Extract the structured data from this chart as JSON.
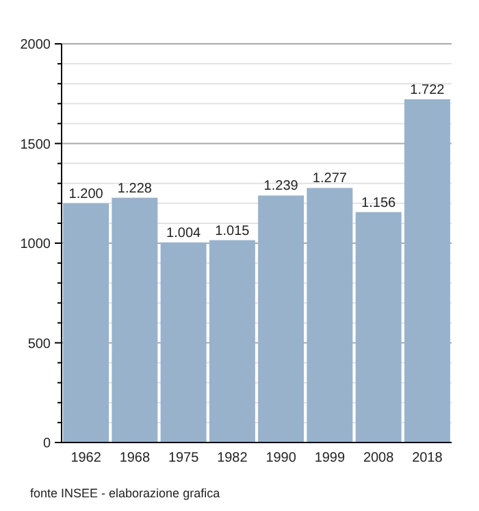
{
  "chart_data": {
    "type": "bar",
    "categories": [
      "1962",
      "1968",
      "1975",
      "1982",
      "1990",
      "1999",
      "2008",
      "2018"
    ],
    "values": [
      1200,
      1228,
      1004,
      1015,
      1239,
      1277,
      1156,
      1722
    ],
    "value_labels": [
      "1.200",
      "1.228",
      "1.004",
      "1.015",
      "1.239",
      "1.277",
      "1.156",
      "1.722"
    ],
    "color": "#98b2cc",
    "ylim": [
      0,
      2000
    ],
    "yticks": [
      0,
      {
        "value": 100,
        "label": null
      },
      {
        "value": 200,
        "label": null
      },
      {
        "value": 300,
        "label": null
      },
      {
        "value": 400,
        "label": null
      },
      500,
      {
        "value": 600,
        "label": null
      },
      {
        "value": 700,
        "label": null
      },
      {
        "value": 800,
        "label": null
      },
      {
        "value": 900,
        "label": null
      },
      1000,
      {
        "value": 1100,
        "label": null
      },
      {
        "value": 1200,
        "label": null
      },
      {
        "value": 1300,
        "label": null
      },
      {
        "value": 1400,
        "label": null
      },
      1500,
      {
        "value": 1600,
        "label": null
      },
      {
        "value": 1700,
        "label": null
      },
      {
        "value": 1800,
        "label": null
      },
      {
        "value": 1900,
        "label": null
      },
      2000
    ],
    "grid": true,
    "annotations": [
      "fonte INSEE - elaborazione grafica"
    ]
  }
}
